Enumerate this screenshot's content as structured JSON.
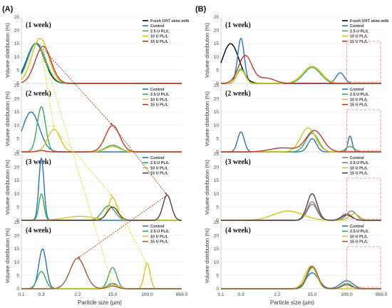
{
  "figure": {
    "panel_labels": [
      "(A)",
      "(B)"
    ],
    "x_axis_label": "Particle size (µm)",
    "y_axis_label": "Volume distribution (%)",
    "x_tick_labels": [
      "0.1",
      "0.3",
      "2.2",
      "15.0",
      "100.0",
      "669.0"
    ]
  },
  "colors": {
    "Fresh UHT skim milk": "#000000",
    "Control": "#2e75b6",
    "2.5 U PL/L": "#3aaa5c",
    "10 U PL/L": "#d6c41a",
    "15 U PL/L": "#c0392b",
    "gray_series": "#808080",
    "dark_series": "#5b3d3d",
    "olive_series": "#a89838",
    "brown_series": "#9b5a3c",
    "arrow_yellow": "#e3d82a",
    "arrow_brown": "#a0522d",
    "dash_box": "#e8a0a0"
  },
  "chart_data": [
    {
      "type": "line",
      "panel": "A",
      "title": "(1 week)",
      "xscale": "log",
      "ylim": [
        0,
        25
      ],
      "yticks": [
        0,
        5,
        10,
        15,
        20,
        25
      ],
      "legend": [
        "Fresh UHT skim milk",
        "Control",
        "2.5 U PL/L",
        "10 U PL/L",
        "15 U PL/L"
      ],
      "series": [
        {
          "name": "Fresh UHT skim milk",
          "color": "#000000",
          "peaks": [
            [
              0.22,
              15.0,
              0.21
            ]
          ]
        },
        {
          "name": "Control",
          "color": "#2e75b6",
          "peaks": [
            [
              0.22,
              15.0,
              0.22
            ]
          ]
        },
        {
          "name": "2.5 U PL/L",
          "color": "#3aaa5c",
          "peaks": [
            [
              0.23,
              15.2,
              0.21
            ]
          ]
        },
        {
          "name": "10 U PL/L",
          "color": "#d6c41a",
          "peaks": [
            [
              0.28,
              17.0,
              0.2
            ]
          ]
        },
        {
          "name": "15 U PL/L",
          "color": "#c0392b",
          "peaks": [
            [
              0.33,
              14.0,
              0.19
            ]
          ]
        }
      ]
    },
    {
      "type": "line",
      "panel": "A",
      "title": "(2 week)",
      "xscale": "log",
      "ylim": [
        0,
        25
      ],
      "yticks": [
        0,
        5,
        10,
        15,
        20,
        25
      ],
      "legend": [
        "Control",
        "2.5 U PL/L",
        "10 U PL/L",
        "15 U PL/L"
      ],
      "series": [
        {
          "name": "Control",
          "color": "#2e75b6",
          "peaks": [
            [
              0.17,
              15.0,
              0.2
            ]
          ]
        },
        {
          "name": "2.5 U PL/L",
          "color": "#3aaa5c",
          "peaks": [
            [
              0.3,
              17.0,
              0.1
            ],
            [
              15.0,
              2.5,
              0.17
            ]
          ]
        },
        {
          "name": "10 U PL/L",
          "color": "#d6c41a",
          "peaks": [
            [
              0.6,
              8.5,
              0.15
            ],
            [
              15.0,
              2.0,
              0.17
            ]
          ]
        },
        {
          "name": "15 U PL/L",
          "color": "#c0392b",
          "peaks": [
            [
              15.0,
              10.0,
              0.17
            ],
            [
              0.3,
              0.5,
              0.1
            ]
          ]
        }
      ]
    },
    {
      "type": "line",
      "panel": "A",
      "title": "(3 week)",
      "xscale": "log",
      "ylim": [
        0,
        25
      ],
      "yticks": [
        0,
        5,
        10,
        15,
        20,
        25
      ],
      "legend": [
        "Control",
        "2.5 U PL/L",
        "10 U PL/L",
        "15 U PL/L"
      ],
      "series": [
        {
          "name": "Control",
          "color": "#2e75b6",
          "peaks": [
            [
              0.3,
              23.5,
              0.06
            ]
          ]
        },
        {
          "name": "2.5 U PL/L",
          "color": "#3aaa5c",
          "peaks": [
            [
              0.3,
              10.0,
              0.06
            ],
            [
              12.0,
              5.5,
              0.15
            ]
          ]
        },
        {
          "name": "10 U PL/L",
          "color": "#d6c41a",
          "peaks": [
            [
              15.0,
              8.5,
              0.1
            ],
            [
              2.5,
              1.5,
              0.35
            ]
          ]
        },
        {
          "name": "15 U PL/L",
          "color": "#5b3d3d",
          "peaks": [
            [
              15.0,
              5.0,
              0.13
            ],
            [
              300.0,
              9.5,
              0.1
            ]
          ]
        }
      ]
    },
    {
      "type": "line",
      "panel": "A",
      "title": "(4 week)",
      "xscale": "log",
      "ylim": [
        0,
        25
      ],
      "yticks": [
        0,
        5,
        10,
        15,
        20,
        25
      ],
      "legend": [
        "Control",
        "2.5 U PL/L",
        "10 U PL/L",
        "15 U PL/L"
      ],
      "series": [
        {
          "name": "Control",
          "color": "#2e75b6",
          "peaks": [
            [
              0.32,
              15.0,
              0.09
            ],
            [
              15.0,
              2.0,
              0.12
            ]
          ]
        },
        {
          "name": "2.5 U PL/L",
          "color": "#3aaa5c",
          "peaks": [
            [
              0.3,
              6.5,
              0.1
            ],
            [
              15.0,
              8.0,
              0.1
            ]
          ]
        },
        {
          "name": "10 U PL/L",
          "color": "#d6c41a",
          "peaks": [
            [
              100.0,
              9.5,
              0.07
            ],
            [
              15.0,
              1.5,
              0.15
            ]
          ]
        },
        {
          "name": "15 U PL/L",
          "color": "#9b5a3c",
          "peaks": [
            [
              2.2,
              11.5,
              0.18
            ],
            [
              15.0,
              1.0,
              0.12
            ]
          ]
        }
      ]
    },
    {
      "type": "line",
      "panel": "B",
      "title": "(1 week)",
      "xscale": "log",
      "ylim": [
        0,
        25
      ],
      "yticks": [
        0,
        5,
        10,
        15,
        20,
        25
      ],
      "legend": [
        "Fresh UHT skim milk",
        "Control",
        "2.5 U PL/L",
        "10 U PL/L",
        "15 U PL/L"
      ],
      "series": [
        {
          "name": "Fresh UHT skim milk",
          "color": "#000000",
          "peaks": [
            [
              0.17,
              15.0,
              0.2
            ]
          ]
        },
        {
          "name": "Control",
          "color": "#2e75b6",
          "peaks": [
            [
              0.3,
              17.0,
              0.08
            ],
            [
              70.0,
              4.0,
              0.1
            ]
          ]
        },
        {
          "name": "2.5 U PL/L",
          "color": "#3aaa5c",
          "peaks": [
            [
              0.3,
              5.5,
              0.1
            ],
            [
              15.0,
              6.0,
              0.2
            ]
          ]
        },
        {
          "name": "10 U PL/L",
          "color": "#d6c41a",
          "peaks": [
            [
              0.3,
              5.0,
              0.1
            ],
            [
              15.0,
              6.5,
              0.22
            ]
          ]
        },
        {
          "name": "15 U PL/L",
          "color": "#c0392b",
          "peaks": [
            [
              0.38,
              10.5,
              0.16
            ],
            [
              1.2,
              2.0,
              0.2
            ]
          ]
        }
      ]
    },
    {
      "type": "line",
      "panel": "B",
      "title": "(2 week)",
      "xscale": "log",
      "ylim": [
        0,
        25
      ],
      "yticks": [
        0,
        5,
        10,
        15,
        20,
        25
      ],
      "legend": [
        "Control",
        "2.5 U PL/L",
        "10 U PL/L",
        "15 U PL/L"
      ],
      "series": [
        {
          "name": "Control",
          "color": "#2e75b6",
          "peaks": [
            [
              0.3,
              7.5,
              0.08
            ],
            [
              15.0,
              5.0,
              0.1
            ],
            [
              120.0,
              6.0,
              0.05
            ]
          ]
        },
        {
          "name": "2.5 U PL/L",
          "color": "#3aaa5c",
          "peaks": [
            [
              15.0,
              7.0,
              0.15
            ],
            [
              120.0,
              2.0,
              0.1
            ]
          ]
        },
        {
          "name": "10 U PL/L",
          "color": "#d6c41a",
          "peaks": [
            [
              12.0,
              9.0,
              0.18
            ]
          ]
        },
        {
          "name": "15 U PL/L",
          "color": "#c0392b",
          "peaks": [
            [
              17.0,
              8.0,
              0.2
            ],
            [
              3.0,
              1.5,
              0.3
            ]
          ]
        }
      ]
    },
    {
      "type": "line",
      "panel": "B",
      "title": "(3 week)",
      "xscale": "log",
      "ylim": [
        0,
        25
      ],
      "yticks": [
        0,
        5,
        10,
        15,
        20,
        25
      ],
      "legend": [
        "Control",
        "2.5 U PL/L",
        "10 U PL/L",
        "15 U PL/L"
      ],
      "series": [
        {
          "name": "Control",
          "color": "#808080",
          "peaks": [
            [
              15.0,
              7.0,
              0.12
            ],
            [
              100.0,
              2.5,
              0.12
            ]
          ]
        },
        {
          "name": "2.5 U PL/L",
          "color": "#808080",
          "peaks": [
            [
              15.0,
              6.0,
              0.12
            ],
            [
              130.0,
              3.5,
              0.12
            ]
          ]
        },
        {
          "name": "10 U PL/L",
          "color": "#d6c41a",
          "peaks": [
            [
              4.0,
              3.5,
              0.35
            ],
            [
              150.0,
              2.5,
              0.12
            ]
          ]
        },
        {
          "name": "15 U PL/L",
          "color": "#5b3d3d",
          "peaks": [
            [
              15.0,
              10.0,
              0.12
            ],
            [
              100.0,
              2.0,
              0.12
            ]
          ]
        }
      ]
    },
    {
      "type": "line",
      "panel": "B",
      "title": "(4 week)",
      "xscale": "log",
      "ylim": [
        0,
        25
      ],
      "yticks": [
        0,
        5,
        10,
        15,
        20,
        25
      ],
      "legend": [
        "Control",
        "2.5 U PL/L",
        "10 U PL/L",
        "15 U PL/L"
      ],
      "series": [
        {
          "name": "Control",
          "color": "#2e75b6",
          "peaks": [
            [
              15.0,
              6.0,
              0.15
            ],
            [
              100.0,
              3.0,
              0.15
            ]
          ]
        },
        {
          "name": "2.5 U PL/L",
          "color": "#3aaa5c",
          "peaks": [
            [
              15.0,
              8.0,
              0.12
            ],
            [
              100.0,
              2.0,
              0.12
            ]
          ]
        },
        {
          "name": "10 U PL/L",
          "color": "#d6c41a",
          "peaks": [
            [
              14.0,
              8.5,
              0.14
            ]
          ]
        },
        {
          "name": "15 U PL/L",
          "color": "#9b5a3c",
          "peaks": [
            [
              15.0,
              8.5,
              0.13
            ],
            [
              100.0,
              1.5,
              0.12
            ]
          ]
        }
      ]
    }
  ]
}
